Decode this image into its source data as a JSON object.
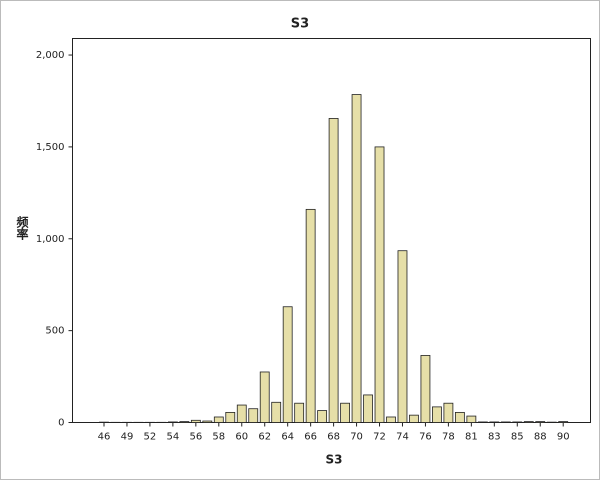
{
  "chart_data": {
    "type": "bar",
    "title": "S3",
    "x_label": "S3",
    "y_label": "频率",
    "categories": [
      "46",
      null,
      "49",
      null,
      "52",
      null,
      "54",
      null,
      "56",
      null,
      "58",
      null,
      "60",
      null,
      "62",
      null,
      "64",
      null,
      "66",
      null,
      "68",
      null,
      "70",
      null,
      "72",
      null,
      "74",
      null,
      "76",
      null,
      "78",
      null,
      "81",
      null,
      "83",
      null,
      "85",
      null,
      "88",
      null,
      "90"
    ],
    "values": [
      2,
      1,
      1,
      1,
      1,
      1,
      3,
      5,
      12,
      8,
      30,
      55,
      95,
      75,
      275,
      110,
      630,
      105,
      1160,
      65,
      1655,
      105,
      1785,
      150,
      1500,
      30,
      935,
      40,
      365,
      85,
      105,
      55,
      35,
      3,
      3,
      3,
      3,
      5,
      5,
      2,
      5
    ],
    "color": "#e6dfa8",
    "ylim": [
      0,
      2090
    ],
    "yticks": [
      0,
      500,
      {
        "value": 1000,
        "label": "1,000"
      },
      {
        "value": 1500,
        "label": "1,500"
      },
      {
        "value": 2000,
        "label": "2,000"
      }
    ],
    "grid": false
  }
}
